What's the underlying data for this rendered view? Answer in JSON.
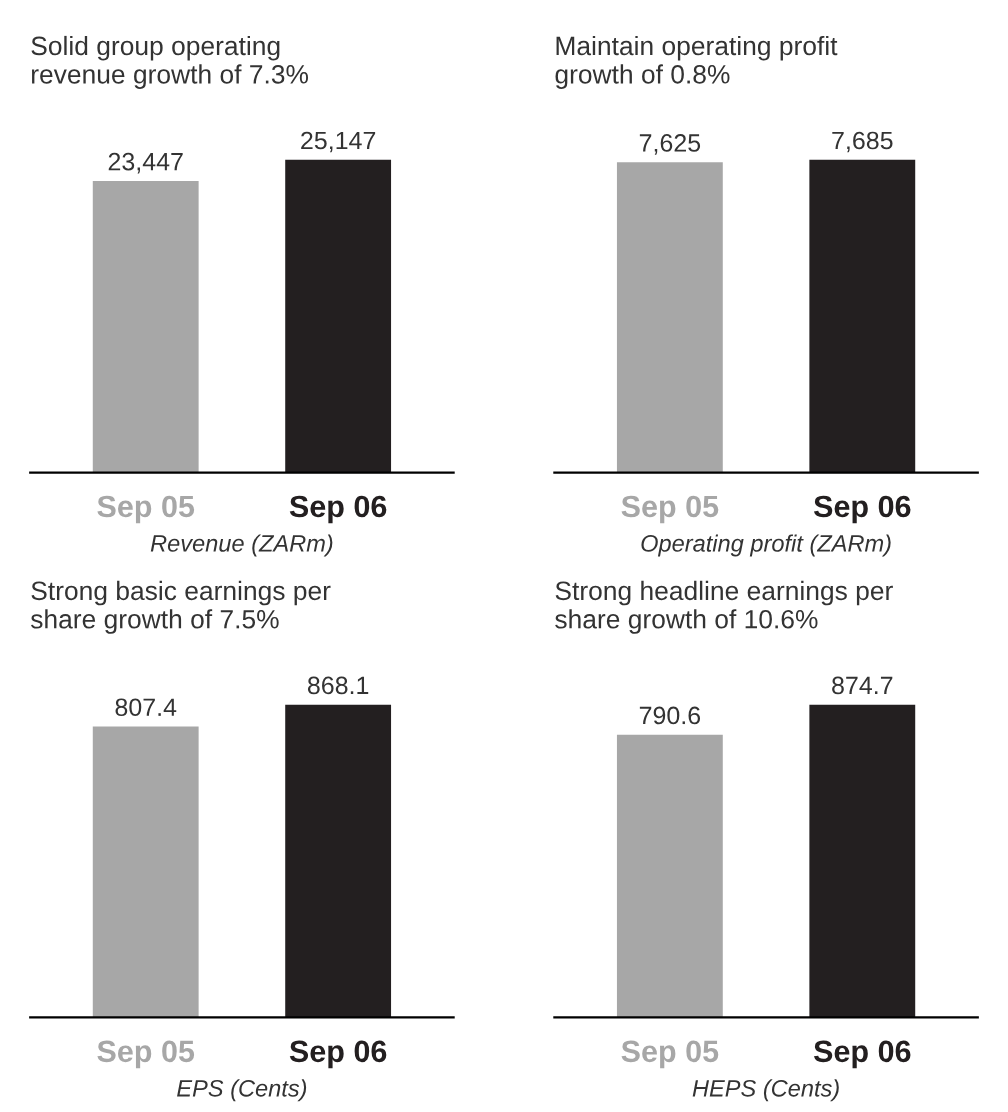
{
  "chart_data": [
    {
      "type": "bar",
      "title": "Solid group operating\nrevenue growth of 7.3%",
      "xlabel": "Revenue (ZARm)",
      "categories": [
        "Sep 05",
        "Sep 06"
      ],
      "values": [
        23447,
        25147
      ],
      "colors": [
        "#a7a7a7",
        "#231f20"
      ],
      "value_labels": [
        "23,447",
        "25,147"
      ],
      "tick_labels": "x"
    },
    {
      "type": "bar",
      "title": "Maintain operating profit\ngrowth of 0.8%",
      "xlabel": "Operating profit (ZARm)",
      "categories": [
        "Sep 05",
        "Sep 06"
      ],
      "values": [
        7625,
        7685
      ],
      "colors": [
        "#a7a7a7",
        "#231f20"
      ],
      "value_labels": [
        "7,625",
        "7,685"
      ],
      "tick_labels": "x"
    },
    {
      "type": "bar",
      "title": "Strong basic earnings per\nshare growth of 7.5%",
      "xlabel": "EPS (Cents)",
      "categories": [
        "Sep 05",
        "Sep 06"
      ],
      "values": [
        807.4,
        868.1
      ],
      "colors": [
        "#a7a7a7",
        "#231f20"
      ],
      "data_labels": true,
      "tick_labels": "x"
    },
    {
      "type": "bar",
      "title": "Strong headline earnings per\nshare growth of 10.6%",
      "xlabel": "HEPS (Cents)",
      "categories": [
        "Sep 05",
        "Sep 06"
      ],
      "values": [
        790.6,
        874.7
      ],
      "colors": [
        "#a7a7a7",
        "#231f20"
      ],
      "data_labels": true,
      "tick_labels": "x"
    }
  ]
}
